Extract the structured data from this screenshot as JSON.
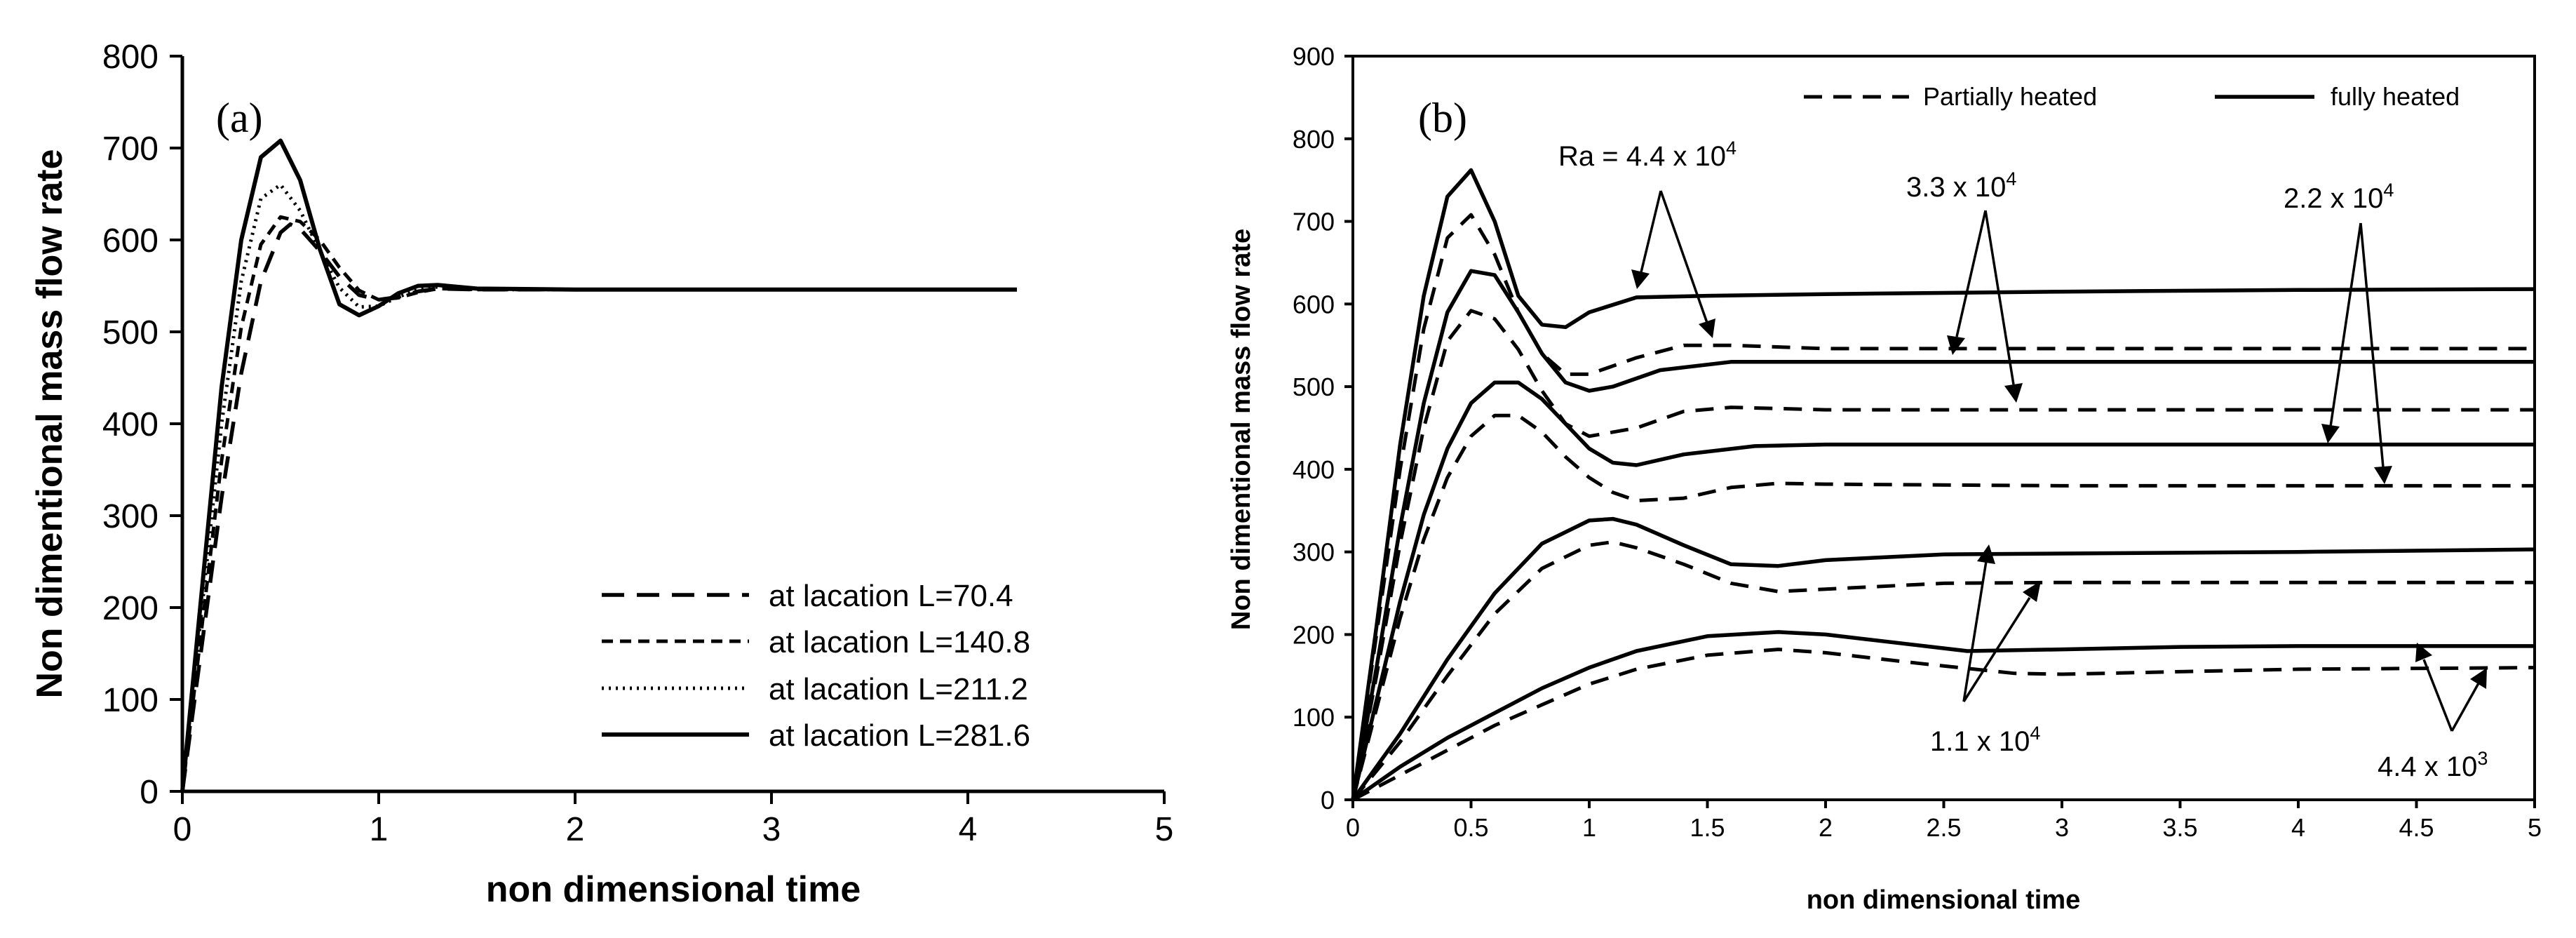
{
  "chart_data": [
    {
      "panel": "(a)",
      "type": "line",
      "xlabel": "non dimensional time",
      "ylabel": "Non dimentional mass flow rate",
      "xlim": [
        0,
        5
      ],
      "ylim": [
        0,
        800
      ],
      "xticks": [
        "0",
        "1",
        "2",
        "3",
        "4",
        "5"
      ],
      "yticks": [
        "0",
        "100",
        "200",
        "300",
        "400",
        "500",
        "600",
        "700",
        "800"
      ],
      "legend_position": "bottom-right",
      "series": [
        {
          "name": "at lacation L=70.4",
          "style": "long-dash",
          "x": [
            0,
            0.1,
            0.2,
            0.3,
            0.4,
            0.5,
            0.55,
            0.6,
            0.7,
            0.8,
            0.9,
            1.0,
            1.1,
            1.2,
            1.3,
            1.5,
            2.0,
            3.0,
            4.25
          ],
          "y": [
            0,
            160,
            320,
            455,
            555,
            608,
            617,
            612,
            588,
            560,
            540,
            535,
            538,
            544,
            547,
            546,
            546,
            546,
            546
          ]
        },
        {
          "name": "at lacation L=140.8",
          "style": "dash",
          "x": [
            0,
            0.1,
            0.2,
            0.3,
            0.4,
            0.5,
            0.6,
            0.7,
            0.8,
            0.9,
            1.0,
            1.1,
            1.2,
            1.3,
            1.5,
            2.0,
            3.0,
            4.25
          ],
          "y": [
            0,
            180,
            360,
            505,
            595,
            625,
            620,
            600,
            570,
            545,
            535,
            537,
            543,
            547,
            546,
            546,
            546,
            546
          ]
        },
        {
          "name": "at lacation L=211.2",
          "style": "dotted",
          "x": [
            0,
            0.1,
            0.2,
            0.3,
            0.4,
            0.5,
            0.6,
            0.7,
            0.8,
            0.9,
            1.0,
            1.1,
            1.2,
            1.3,
            1.5,
            2.0,
            3.0,
            4.25
          ],
          "y": [
            0,
            200,
            400,
            555,
            645,
            660,
            632,
            588,
            548,
            527,
            528,
            538,
            546,
            549,
            546,
            546,
            546,
            546
          ]
        },
        {
          "name": "at lacation L=281.6",
          "style": "solid",
          "x": [
            0,
            0.1,
            0.2,
            0.3,
            0.4,
            0.5,
            0.6,
            0.7,
            0.8,
            0.9,
            1.0,
            1.1,
            1.2,
            1.3,
            1.5,
            2.0,
            3.0,
            4.25
          ],
          "y": [
            0,
            220,
            440,
            600,
            690,
            708,
            665,
            590,
            530,
            518,
            528,
            542,
            550,
            551,
            547,
            546,
            546,
            546
          ]
        }
      ]
    },
    {
      "panel": "(b)",
      "type": "line",
      "xlabel": "non dimensional time",
      "ylabel": "Non dimentional mass flow rate",
      "xlim": [
        0,
        5
      ],
      "ylim": [
        0,
        900
      ],
      "xticks": [
        "0",
        "0.5",
        "1",
        "1.5",
        "2",
        "2.5",
        "3",
        "3.5",
        "4",
        "4.5",
        "5"
      ],
      "yticks": [
        "0",
        "100",
        "200",
        "300",
        "400",
        "500",
        "600",
        "700",
        "800",
        "900"
      ],
      "legend_position": "top-right",
      "legend": [
        "Partially heated",
        "fully heated"
      ],
      "series": [
        {
          "name": "fully heated Ra = 4.4 x 10^4",
          "style": "solid",
          "x": [
            0,
            0.1,
            0.2,
            0.3,
            0.4,
            0.5,
            0.6,
            0.7,
            0.8,
            0.9,
            1.0,
            1.2,
            1.5,
            2.0,
            3.0,
            4.0,
            5.0
          ],
          "y": [
            0,
            210,
            430,
            610,
            730,
            762,
            700,
            610,
            575,
            572,
            590,
            608,
            610,
            612,
            615,
            617,
            618
          ]
        },
        {
          "name": "partially heated Ra = 4.4 x 10^4",
          "style": "dash",
          "x": [
            0,
            0.1,
            0.2,
            0.3,
            0.4,
            0.5,
            0.6,
            0.7,
            0.8,
            0.9,
            1.0,
            1.2,
            1.4,
            1.6,
            2.0,
            3.0,
            4.0,
            5.0
          ],
          "y": [
            0,
            200,
            400,
            570,
            680,
            708,
            660,
            590,
            540,
            515,
            515,
            535,
            550,
            550,
            546,
            546,
            546,
            546
          ]
        },
        {
          "name": "fully heated Ra = 3.3 x 10^4",
          "style": "solid",
          "x": [
            0,
            0.1,
            0.2,
            0.3,
            0.4,
            0.5,
            0.6,
            0.7,
            0.8,
            0.9,
            1.0,
            1.1,
            1.3,
            1.6,
            2.0,
            3.0,
            5.0
          ],
          "y": [
            0,
            160,
            330,
            480,
            590,
            640,
            635,
            590,
            540,
            505,
            495,
            500,
            520,
            530,
            530,
            530,
            530
          ]
        },
        {
          "name": "partially heated Ra = 3.3 x 10^4",
          "style": "dash",
          "x": [
            0,
            0.1,
            0.2,
            0.3,
            0.4,
            0.5,
            0.6,
            0.7,
            0.8,
            0.9,
            1.0,
            1.2,
            1.4,
            1.6,
            2.0,
            3.0,
            5.0
          ],
          "y": [
            0,
            150,
            310,
            450,
            555,
            592,
            582,
            545,
            495,
            455,
            440,
            450,
            470,
            475,
            472,
            472,
            472
          ]
        },
        {
          "name": "fully heated Ra = 2.2 x 10^4",
          "style": "solid",
          "x": [
            0,
            0.1,
            0.2,
            0.3,
            0.4,
            0.5,
            0.6,
            0.7,
            0.8,
            0.9,
            1.0,
            1.1,
            1.2,
            1.4,
            1.7,
            2.0,
            3.0,
            5.0
          ],
          "y": [
            0,
            120,
            240,
            345,
            425,
            480,
            505,
            505,
            485,
            455,
            425,
            408,
            405,
            418,
            428,
            430,
            430,
            430
          ]
        },
        {
          "name": "partially heated Ra = 2.2 x 10^4",
          "style": "dash",
          "x": [
            0,
            0.1,
            0.2,
            0.3,
            0.4,
            0.5,
            0.6,
            0.7,
            0.8,
            0.9,
            1.0,
            1.1,
            1.2,
            1.4,
            1.6,
            1.8,
            2.0,
            3.0,
            5.0
          ],
          "y": [
            0,
            110,
            220,
            315,
            390,
            440,
            465,
            465,
            445,
            415,
            390,
            372,
            362,
            365,
            378,
            383,
            382,
            380,
            380
          ]
        },
        {
          "name": "fully heated Ra = 1.1 x 10^4",
          "style": "solid",
          "x": [
            0,
            0.2,
            0.4,
            0.6,
            0.8,
            1.0,
            1.1,
            1.2,
            1.4,
            1.6,
            1.8,
            2.0,
            2.5,
            3.0,
            4.0,
            5.0
          ],
          "y": [
            0,
            80,
            170,
            250,
            310,
            338,
            340,
            333,
            308,
            285,
            283,
            290,
            297,
            298,
            300,
            303
          ]
        },
        {
          "name": "partially heated Ra = 1.1 x 10^4",
          "style": "dash",
          "x": [
            0,
            0.2,
            0.4,
            0.6,
            0.8,
            1.0,
            1.1,
            1.2,
            1.4,
            1.6,
            1.8,
            2.0,
            2.5,
            3.0,
            4.0,
            5.0
          ],
          "y": [
            0,
            70,
            150,
            225,
            280,
            308,
            312,
            305,
            285,
            262,
            252,
            255,
            262,
            263,
            263,
            263
          ]
        },
        {
          "name": "fully heated Ra = 4.4 x 10^3",
          "style": "solid",
          "x": [
            0,
            0.2,
            0.4,
            0.6,
            0.8,
            1.0,
            1.2,
            1.5,
            1.8,
            2.0,
            2.3,
            2.6,
            3.0,
            3.5,
            4.0,
            5.0
          ],
          "y": [
            0,
            40,
            75,
            105,
            135,
            160,
            180,
            198,
            203,
            200,
            190,
            180,
            182,
            185,
            186,
            186
          ]
        },
        {
          "name": "partially heated Ra = 4.4 x 10^3",
          "style": "dash",
          "x": [
            0,
            0.2,
            0.4,
            0.6,
            0.8,
            1.0,
            1.2,
            1.5,
            1.8,
            2.0,
            2.4,
            2.8,
            3.0,
            3.5,
            4.0,
            5.0
          ],
          "y": [
            0,
            30,
            60,
            90,
            115,
            140,
            158,
            175,
            182,
            178,
            165,
            153,
            152,
            155,
            158,
            160
          ]
        }
      ],
      "annotations": [
        {
          "label": "Ra = 4.4 x 10",
          "sup": "4"
        },
        {
          "label": "3.3  x 10",
          "sup": "4"
        },
        {
          "label": "2.2 x 10",
          "sup": "4"
        },
        {
          "label": "1.1 x 10",
          "sup": "4"
        },
        {
          "label": "4.4 x 10",
          "sup": "3"
        }
      ]
    }
  ]
}
